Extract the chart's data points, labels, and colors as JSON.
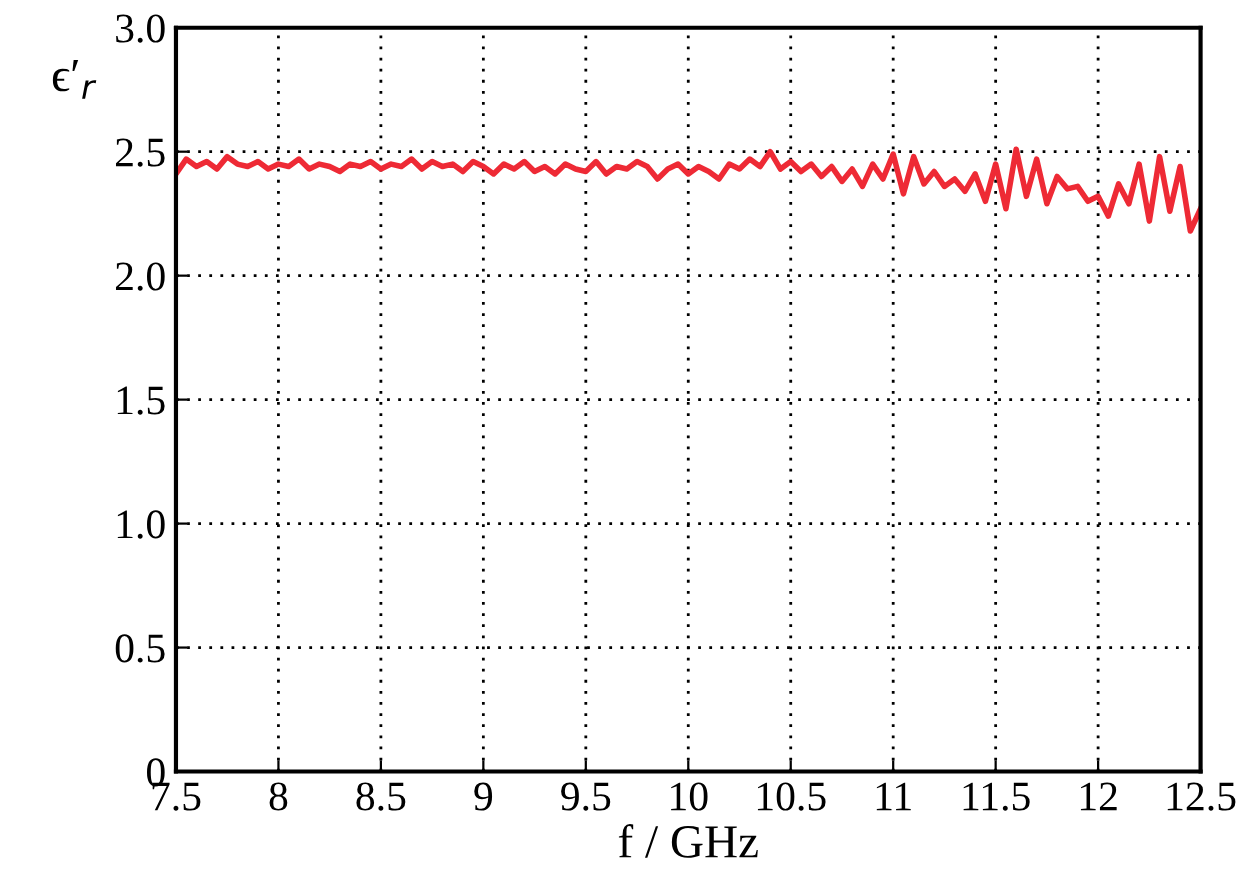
{
  "chart_data": {
    "type": "line",
    "xlabel": "f / GHz",
    "ylabel": "ϵ′$_{r}$",
    "x": [
      7.5,
      7.55,
      7.6,
      7.65,
      7.7,
      7.75,
      7.8,
      7.85,
      7.9,
      7.95,
      8.0,
      8.05,
      8.1,
      8.15,
      8.2,
      8.25,
      8.3,
      8.35,
      8.4,
      8.45,
      8.5,
      8.55,
      8.6,
      8.65,
      8.7,
      8.75,
      8.8,
      8.85,
      8.9,
      8.95,
      9.0,
      9.05,
      9.1,
      9.15,
      9.2,
      9.25,
      9.3,
      9.35,
      9.4,
      9.45,
      9.5,
      9.55,
      9.6,
      9.65,
      9.7,
      9.75,
      9.8,
      9.85,
      9.9,
      9.95,
      10.0,
      10.05,
      10.1,
      10.15,
      10.2,
      10.25,
      10.3,
      10.35,
      10.4,
      10.45,
      10.5,
      10.55,
      10.6,
      10.65,
      10.7,
      10.75,
      10.8,
      10.85,
      10.9,
      10.95,
      11.0,
      11.05,
      11.1,
      11.15,
      11.2,
      11.25,
      11.3,
      11.35,
      11.4,
      11.45,
      11.5,
      11.55,
      11.6,
      11.65,
      11.7,
      11.75,
      11.8,
      11.85,
      11.9,
      11.95,
      12.0,
      12.05,
      12.1,
      12.15,
      12.2,
      12.25,
      12.3,
      12.35,
      12.4,
      12.45,
      12.5
    ],
    "series": [
      {
        "color": "#ee2a35",
        "values": [
          2.41,
          2.47,
          2.44,
          2.46,
          2.43,
          2.48,
          2.45,
          2.44,
          2.46,
          2.43,
          2.45,
          2.44,
          2.47,
          2.43,
          2.45,
          2.44,
          2.42,
          2.45,
          2.44,
          2.46,
          2.43,
          2.45,
          2.44,
          2.47,
          2.43,
          2.46,
          2.44,
          2.45,
          2.42,
          2.46,
          2.44,
          2.41,
          2.45,
          2.43,
          2.46,
          2.42,
          2.44,
          2.41,
          2.45,
          2.43,
          2.42,
          2.46,
          2.41,
          2.44,
          2.43,
          2.46,
          2.44,
          2.39,
          2.43,
          2.45,
          2.41,
          2.44,
          2.42,
          2.39,
          2.45,
          2.43,
          2.47,
          2.44,
          2.5,
          2.43,
          2.46,
          2.42,
          2.45,
          2.4,
          2.44,
          2.38,
          2.43,
          2.36,
          2.45,
          2.39,
          2.49,
          2.33,
          2.48,
          2.37,
          2.42,
          2.36,
          2.39,
          2.34,
          2.41,
          2.3,
          2.45,
          2.27,
          2.51,
          2.32,
          2.47,
          2.29,
          2.4,
          2.35,
          2.36,
          2.3,
          2.32,
          2.24,
          2.37,
          2.29,
          2.45,
          2.22,
          2.48,
          2.26,
          2.44,
          2.18,
          2.27
        ]
      }
    ],
    "xlim": [
      7.5,
      12.5
    ],
    "xticks": [
      7.5,
      8,
      8.5,
      9,
      9.5,
      10,
      10.5,
      11,
      11.5,
      12,
      12.5
    ],
    "ylim": [
      0,
      3
    ],
    "yticks": [
      0,
      0.5,
      {
        "value": 1,
        "label": "1.0"
      },
      1.5,
      {
        "value": 2,
        "label": "2.0"
      },
      2.5,
      {
        "value": 3,
        "label": "3.0"
      }
    ],
    "grid": true,
    "marker": "none",
    "line_style": "solid"
  }
}
